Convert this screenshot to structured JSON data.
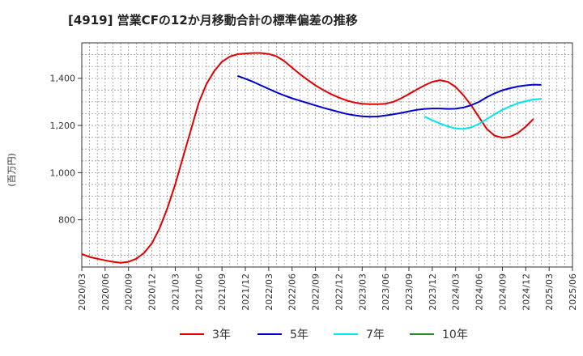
{
  "chart_data": {
    "type": "line",
    "title": "[4919]  営業CFの12か月移動合計の標準偏差の推移",
    "ylabel": "(百万円)",
    "xlabel": "",
    "ylim": [
      600,
      1550
    ],
    "y_ticks": [
      800,
      1000,
      1200,
      1400
    ],
    "y_tick_labels": [
      "800",
      "1,000",
      "1,200",
      "1,400"
    ],
    "x_range": [
      "2020-03",
      "2025-06"
    ],
    "x_ticks": [
      "2020/03",
      "2020/06",
      "2020/09",
      "2020/12",
      "2021/03",
      "2021/06",
      "2021/09",
      "2021/12",
      "2022/03",
      "2022/06",
      "2022/09",
      "2022/12",
      "2023/03",
      "2023/06",
      "2023/09",
      "2023/12",
      "2024/03",
      "2024/06",
      "2024/09",
      "2024/12",
      "2025/03",
      "2025/06"
    ],
    "grid": true,
    "legend_position": "bottom",
    "series": [
      {
        "name": "3年",
        "color": "#e00000",
        "points": [
          [
            "2020-03",
            655
          ],
          [
            "2020-04",
            643
          ],
          [
            "2020-05",
            635
          ],
          [
            "2020-06",
            628
          ],
          [
            "2020-07",
            622
          ],
          [
            "2020-08",
            618
          ],
          [
            "2020-09",
            622
          ],
          [
            "2020-10",
            635
          ],
          [
            "2020-11",
            660
          ],
          [
            "2020-12",
            700
          ],
          [
            "2021-01",
            765
          ],
          [
            "2021-02",
            850
          ],
          [
            "2021-03",
            950
          ],
          [
            "2021-04",
            1065
          ],
          [
            "2021-05",
            1180
          ],
          [
            "2021-06",
            1295
          ],
          [
            "2021-07",
            1375
          ],
          [
            "2021-08",
            1430
          ],
          [
            "2021-09",
            1470
          ],
          [
            "2021-10",
            1492
          ],
          [
            "2021-11",
            1502
          ],
          [
            "2021-12",
            1505
          ],
          [
            "2022-01",
            1507
          ],
          [
            "2022-02",
            1507
          ],
          [
            "2022-03",
            1503
          ],
          [
            "2022-04",
            1493
          ],
          [
            "2022-05",
            1473
          ],
          [
            "2022-06",
            1445
          ],
          [
            "2022-07",
            1418
          ],
          [
            "2022-08",
            1393
          ],
          [
            "2022-09",
            1370
          ],
          [
            "2022-10",
            1350
          ],
          [
            "2022-11",
            1333
          ],
          [
            "2022-12",
            1318
          ],
          [
            "2023-01",
            1306
          ],
          [
            "2023-02",
            1297
          ],
          [
            "2023-03",
            1292
          ],
          [
            "2023-04",
            1290
          ],
          [
            "2023-05",
            1290
          ],
          [
            "2023-06",
            1292
          ],
          [
            "2023-07",
            1300
          ],
          [
            "2023-08",
            1315
          ],
          [
            "2023-09",
            1333
          ],
          [
            "2023-10",
            1352
          ],
          [
            "2023-11",
            1370
          ],
          [
            "2023-12",
            1385
          ],
          [
            "2024-01",
            1392
          ],
          [
            "2024-02",
            1385
          ],
          [
            "2024-03",
            1363
          ],
          [
            "2024-04",
            1328
          ],
          [
            "2024-05",
            1285
          ],
          [
            "2024-06",
            1235
          ],
          [
            "2024-07",
            1185
          ],
          [
            "2024-08",
            1157
          ],
          [
            "2024-09",
            1148
          ],
          [
            "2024-10",
            1152
          ],
          [
            "2024-11",
            1168
          ],
          [
            "2024-12",
            1195
          ],
          [
            "2025-01",
            1228
          ]
        ]
      },
      {
        "name": "5年",
        "color": "#0000cc",
        "points": [
          [
            "2021-11",
            1410
          ],
          [
            "2021-12",
            1398
          ],
          [
            "2022-01",
            1385
          ],
          [
            "2022-02",
            1370
          ],
          [
            "2022-03",
            1355
          ],
          [
            "2022-04",
            1340
          ],
          [
            "2022-05",
            1327
          ],
          [
            "2022-06",
            1315
          ],
          [
            "2022-07",
            1305
          ],
          [
            "2022-08",
            1295
          ],
          [
            "2022-09",
            1285
          ],
          [
            "2022-10",
            1275
          ],
          [
            "2022-11",
            1266
          ],
          [
            "2022-12",
            1257
          ],
          [
            "2023-01",
            1249
          ],
          [
            "2023-02",
            1243
          ],
          [
            "2023-03",
            1239
          ],
          [
            "2023-04",
            1237
          ],
          [
            "2023-05",
            1238
          ],
          [
            "2023-06",
            1242
          ],
          [
            "2023-07",
            1247
          ],
          [
            "2023-08",
            1253
          ],
          [
            "2023-09",
            1260
          ],
          [
            "2023-10",
            1266
          ],
          [
            "2023-11",
            1270
          ],
          [
            "2023-12",
            1272
          ],
          [
            "2024-01",
            1272
          ],
          [
            "2024-02",
            1270
          ],
          [
            "2024-03",
            1271
          ],
          [
            "2024-04",
            1276
          ],
          [
            "2024-05",
            1286
          ],
          [
            "2024-06",
            1300
          ],
          [
            "2024-07",
            1320
          ],
          [
            "2024-08",
            1336
          ],
          [
            "2024-09",
            1349
          ],
          [
            "2024-10",
            1358
          ],
          [
            "2024-11",
            1365
          ],
          [
            "2024-12",
            1370
          ],
          [
            "2025-01",
            1373
          ],
          [
            "2025-02",
            1372
          ]
        ]
      },
      {
        "name": "7年",
        "color": "#00e5ee",
        "points": [
          [
            "2023-11",
            1238
          ],
          [
            "2023-12",
            1222
          ],
          [
            "2024-01",
            1208
          ],
          [
            "2024-02",
            1196
          ],
          [
            "2024-03",
            1187
          ],
          [
            "2024-04",
            1185
          ],
          [
            "2024-05",
            1192
          ],
          [
            "2024-06",
            1207
          ],
          [
            "2024-07",
            1227
          ],
          [
            "2024-08",
            1247
          ],
          [
            "2024-09",
            1266
          ],
          [
            "2024-10",
            1281
          ],
          [
            "2024-11",
            1294
          ],
          [
            "2024-12",
            1303
          ],
          [
            "2025-01",
            1310
          ],
          [
            "2025-02",
            1313
          ]
        ]
      },
      {
        "name": "10年",
        "color": "#228b22",
        "points": []
      }
    ]
  }
}
